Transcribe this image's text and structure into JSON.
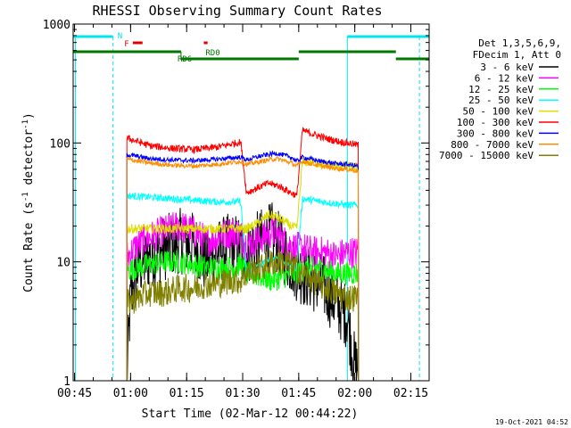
{
  "chart_data": {
    "type": "line",
    "title": "RHESSI Observing Summary Count Rates",
    "xlabel": "Start Time (02-Mar-12 00:44:22)",
    "ylabel_main": "Count Rate (s",
    "ylabel_sup1": "-1",
    "ylabel_mid": " detector",
    "ylabel_sup2": "-1",
    "ylabel_end": ")",
    "y_scale": "log",
    "ylim": [
      1,
      1000
    ],
    "xlim_minutes": [
      -0.37,
      94.9
    ],
    "x_ticks": [
      {
        "label": "00:45",
        "min": 0
      },
      {
        "label": "01:00",
        "min": 15
      },
      {
        "label": "01:15",
        "min": 30
      },
      {
        "label": "01:30",
        "min": 45
      },
      {
        "label": "01:45",
        "min": 60
      },
      {
        "label": "02:00",
        "min": 75
      },
      {
        "label": "02:15",
        "min": 90
      }
    ],
    "y_ticks": [
      {
        "label": "1",
        "v": 1
      },
      {
        "label": "10",
        "v": 10
      },
      {
        "label": "100",
        "v": 100
      },
      {
        "label": "1000",
        "v": 1000
      }
    ],
    "legend_header": [
      "Det 1,3,5,6,9,",
      "FDecim 1, Att 0"
    ],
    "legend_position": "right",
    "timestamp": "19-Oct-2021 04:52",
    "annotations": {
      "night": "N",
      "flare": "F",
      "rd0": "RD0",
      "rd6": "RD6"
    },
    "colors": {
      "night_band": "#00e5ee",
      "flare_marker": "#e00000",
      "decimation_band": "#007700"
    },
    "series": [
      {
        "name": "3 - 6 keV",
        "color": "#000000",
        "x": [
          14,
          15,
          17,
          20,
          24,
          28,
          32,
          35,
          38,
          42,
          44.5,
          46,
          50,
          53,
          56,
          59,
          61,
          64,
          67,
          70,
          73,
          75
        ],
        "y": [
          1.1,
          5,
          9,
          11,
          13,
          15,
          14,
          10,
          12,
          14,
          13,
          12,
          15,
          17,
          12,
          9,
          8,
          7,
          6,
          4.5,
          3.5,
          1.3
        ]
      },
      {
        "name": "6 - 12 keV",
        "color": "#ff00ff",
        "x": [
          14,
          17,
          20,
          24,
          28,
          32,
          35,
          38,
          42,
          44.5,
          46,
          50,
          53,
          56,
          59,
          61,
          64,
          67,
          70,
          73,
          76
        ],
        "y": [
          11,
          14,
          16,
          18,
          20,
          18,
          15,
          16,
          18,
          17,
          14,
          16,
          18,
          15,
          13,
          13,
          12,
          12,
          11,
          12,
          12
        ]
      },
      {
        "name": "12 - 25 keV",
        "color": "#00ff00",
        "x": [
          14,
          17,
          20,
          24,
          28,
          32,
          35,
          38,
          42,
          44.5,
          46,
          50,
          53,
          56,
          59,
          61,
          64,
          67,
          70,
          73,
          76
        ],
        "y": [
          8.5,
          9,
          9.5,
          10,
          10,
          9.5,
          9,
          9,
          9,
          9.5,
          8,
          7.5,
          7,
          7.5,
          8,
          8.5,
          9,
          8.5,
          8,
          8,
          8
        ]
      },
      {
        "name": "25 - 50 keV",
        "color": "#00ffff",
        "x": [
          14,
          20,
          26,
          32,
          38,
          44.5,
          46,
          50,
          54,
          58,
          59.5,
          61,
          66,
          70,
          73,
          76
        ],
        "y": [
          36,
          35,
          34,
          33,
          32,
          32,
          8,
          9.5,
          11,
          9.5,
          9,
          34,
          32,
          31,
          30,
          30
        ]
      },
      {
        "name": "50 - 100 keV",
        "color": "#dddd00",
        "x": [
          46,
          49,
          52,
          55,
          58,
          59.5,
          61,
          64,
          67,
          70,
          73,
          76
        ],
        "y": [
          19,
          21,
          25,
          23,
          20,
          19,
          70,
          68,
          66,
          64,
          63,
          62
        ]
      },
      {
        "name": "100 - 300 keV",
        "color": "#ff0000",
        "x": [
          14,
          16,
          20,
          26,
          32,
          38,
          42,
          44.5,
          46,
          49,
          52,
          55,
          58,
          59.5,
          61,
          64,
          67,
          70,
          73,
          76
        ],
        "y": [
          110,
          105,
          95,
          90,
          88,
          92,
          98,
          102,
          38,
          42,
          46,
          43,
          38,
          36,
          128,
          118,
          110,
          104,
          100,
          96
        ]
      },
      {
        "name": "300 - 800 keV",
        "color": "#0000ff",
        "x": [
          14,
          20,
          26,
          32,
          38,
          44.5,
          46,
          50,
          54,
          58,
          59.5,
          61,
          66,
          70,
          73,
          76
        ],
        "y": [
          80,
          74,
          72,
          71,
          73,
          76,
          72,
          78,
          82,
          76,
          70,
          76,
          70,
          67,
          66,
          64
        ]
      },
      {
        "name": "800 - 7000 keV",
        "color": "#ff8c00",
        "x": [
          14,
          20,
          26,
          32,
          38,
          44.5,
          46,
          50,
          54,
          58,
          59.5,
          61,
          66,
          70,
          73,
          76
        ],
        "y": [
          73,
          68,
          65,
          64,
          66,
          70,
          66,
          70,
          74,
          68,
          64,
          70,
          64,
          61,
          60,
          58
        ]
      },
      {
        "name": "7000 - 15000 keV",
        "color": "#808000",
        "x": [
          14,
          17,
          20,
          24,
          28,
          32,
          35,
          38,
          42,
          44.5,
          46,
          50,
          53,
          56,
          59,
          61,
          64,
          67,
          70,
          73,
          76
        ],
        "y": [
          4.5,
          5,
          5.5,
          5.5,
          6,
          6,
          6.5,
          6.5,
          7,
          7,
          8,
          9,
          10,
          10,
          9,
          8,
          7,
          6,
          5.5,
          5,
          5
        ]
      }
    ]
  }
}
